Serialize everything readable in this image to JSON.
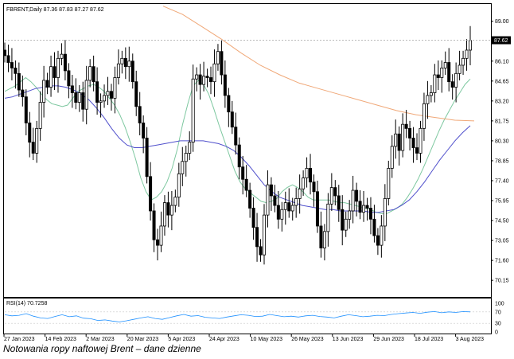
{
  "caption": "Notowania ropy naftowej Brent – dane dzienne",
  "chart_data": {
    "type": "candlestick",
    "header": "FBRENT,Daily  87.36 87.83 87.27 87.62",
    "symbol": "FBRENT",
    "timeframe": "Daily",
    "ohlc_last": {
      "open": 87.36,
      "high": 87.83,
      "low": 87.27,
      "close": 87.62
    },
    "last_price_label": "87.62",
    "ylim": [
      69.0,
      90.2
    ],
    "y_ticks": [
      "89.00",
      "87.62",
      "86.10",
      "84.65",
      "83.20",
      "81.75",
      "80.30",
      "78.85",
      "77.40",
      "75.95",
      "74.50",
      "73.05",
      "71.60",
      "70.15"
    ],
    "x_ticks": [
      "27 Jan 2023",
      "14 Feb 2023",
      "2 Mar 2023",
      "20 Mar 2023",
      "5 Apr 2023",
      "24 Apr 2023",
      "10 May 2023",
      "26 May 2023",
      "13 Jun 2023",
      "29 Jun 2023",
      "18 Jul 2023",
      "3 Aug 2023"
    ],
    "candle_closes": [
      86.5,
      86.0,
      85.6,
      85.2,
      84.0,
      83.5,
      81.6,
      80.2,
      79.4,
      81.2,
      83.1,
      84.7,
      84.2,
      85.7,
      84.9,
      86.3,
      86.6,
      85.4,
      84.3,
      83.8,
      83.1,
      83.8,
      82.6,
      84.7,
      85.7,
      84.6,
      83.1,
      83.2,
      83.6,
      83.9,
      83.4,
      84.9,
      85.9,
      86.3,
      85.7,
      86.1,
      84.6,
      82.8,
      81.6,
      80.5,
      77.7,
      75.2,
      73.1,
      72.7,
      74.1,
      75.8,
      74.9,
      75.6,
      76.2,
      77.9,
      78.8,
      79.4,
      80.2,
      84.8,
      85.1,
      84.4,
      85.0,
      84.9,
      84.6,
      85.9,
      86.8,
      85.1,
      83.6,
      82.4,
      81.3,
      80.0,
      78.4,
      77.5,
      76.7,
      75.4,
      74.0,
      72.6,
      72.0,
      74.9,
      77.1,
      76.3,
      75.6,
      74.6,
      75.3,
      75.8,
      75.2,
      75.6,
      76.1,
      76.8,
      77.6,
      78.3,
      77.3,
      76.6,
      74.1,
      72.5,
      73.7,
      75.7,
      76.9,
      76.3,
      75.3,
      73.8,
      74.6,
      75.2,
      76.7,
      75.9,
      75.1,
      75.6,
      75.4,
      74.6,
      73.4,
      72.7,
      74.1,
      76.1,
      78.3,
      79.9,
      80.8,
      79.6,
      81.5,
      81.2,
      80.5,
      79.8,
      79.4,
      81.2,
      83.0,
      83.6,
      83.8,
      85.1,
      84.9,
      85.6,
      86.0,
      84.6,
      84.2,
      85.2,
      85.8,
      86.3,
      86.9,
      87.6
    ],
    "moving_averages": [
      {
        "color": "#7ec8a0",
        "values": [
          83.9,
          84.1,
          84.3,
          84.6,
          84.9,
          84.6,
          84.2,
          83.7,
          83.3,
          83.0,
          82.9,
          82.8,
          82.9,
          83.4,
          83.9,
          84.1,
          84.3,
          84.4,
          84.2,
          83.9,
          83.4,
          82.9,
          82.2,
          81.3,
          80.2,
          79.0,
          77.6,
          76.6,
          76.0,
          76.2,
          76.6,
          77.3,
          78.3,
          79.7,
          81.5,
          83.0,
          84.3,
          84.7,
          84.4,
          83.7,
          82.6,
          81.4,
          80.3,
          79.2,
          78.1,
          77.3,
          76.8,
          76.5,
          76.2,
          75.9,
          75.8,
          75.9,
          76.1,
          76.6,
          76.9,
          77.1,
          76.9,
          76.6,
          76.2,
          76.0,
          76.0,
          76.0,
          76.0,
          75.9,
          75.8,
          75.8,
          75.7,
          75.6,
          75.5,
          75.4,
          75.3,
          75.1,
          75.0,
          75.0,
          75.2,
          75.4,
          75.7,
          76.2,
          76.8,
          77.5,
          78.3,
          79.2,
          80.1,
          81.0,
          81.8,
          82.5,
          83.2,
          83.8,
          84.4,
          84.8
        ]
      },
      {
        "color": "#5050cc",
        "values": [
          83.4,
          83.5,
          83.7,
          83.9,
          84.1,
          84.2,
          84.3,
          84.3,
          84.2,
          84.0,
          83.7,
          83.3,
          82.7,
          82.0,
          81.2,
          80.5,
          80.0,
          79.8,
          79.8,
          79.9,
          80.0,
          80.1,
          80.2,
          80.3,
          80.3,
          80.3,
          80.3,
          80.2,
          80.1,
          79.9,
          79.6,
          79.1,
          78.5,
          77.8,
          77.1,
          76.6,
          76.2,
          76.0,
          75.8,
          75.6,
          75.5,
          75.4,
          75.3,
          75.3,
          75.2,
          75.2,
          75.2,
          75.2,
          75.1,
          75.1,
          75.2,
          75.3,
          75.6,
          76.0,
          76.6,
          77.3,
          78.1,
          78.9,
          79.6,
          80.3,
          80.9,
          81.4
        ]
      },
      {
        "color": "#f0a878",
        "values": [
          90.1,
          89.5,
          88.6,
          87.7,
          86.7,
          85.8,
          85.1,
          84.5,
          84.1,
          83.7,
          83.3,
          82.9,
          82.5,
          82.2,
          82.0,
          81.8,
          81.75
        ]
      }
    ],
    "rsi": {
      "label": "RSI(14) 70.7258",
      "levels": [
        "100",
        "70",
        "30",
        "0"
      ],
      "values": [
        60,
        56,
        58,
        64,
        55,
        49,
        47,
        54,
        60,
        53,
        56,
        48,
        46,
        40,
        42,
        38,
        35,
        39,
        44,
        49,
        53,
        47,
        44,
        50,
        56,
        61,
        55,
        57,
        51,
        49,
        47,
        52,
        56,
        60,
        58,
        54,
        55,
        61,
        57,
        53,
        55,
        52,
        56,
        58,
        54,
        52,
        49,
        55,
        60,
        57,
        53,
        55,
        58,
        57,
        61,
        64,
        66,
        68,
        65,
        69,
        71,
        67,
        70,
        68,
        71,
        70
      ]
    }
  }
}
